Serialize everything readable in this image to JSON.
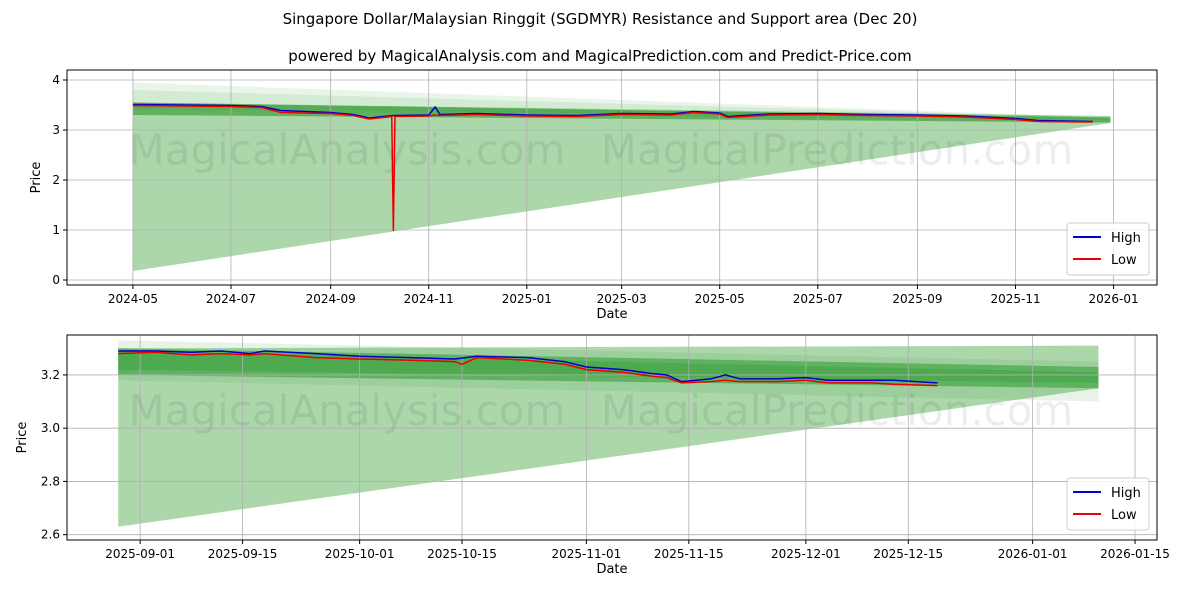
{
  "title": "Singapore Dollar/Malaysian Ringgit (SGDMYR) Resistance and Support area (Dec 20)",
  "subtitle": "powered by MagicalAnalysis.com and MagicalPrediction.com and Predict-Price.com",
  "watermark": [
    "MagicalAnalysis.com",
    "MagicalPrediction.com"
  ],
  "colors": {
    "high": "#0000cc",
    "low": "#ee0000",
    "band": "#2e9a2e"
  },
  "chart_data": [
    {
      "type": "line",
      "xlabel": "Date",
      "ylabel": "Price",
      "ylim": [
        -0.1,
        4.2
      ],
      "xlim": [
        "2024-03-21",
        "2026-01-28"
      ],
      "yticks": [
        0,
        1,
        2,
        3,
        4
      ],
      "xticks": [
        "2024-05",
        "2024-07",
        "2024-09",
        "2024-11",
        "2025-01",
        "2025-03",
        "2025-05",
        "2025-07",
        "2025-09",
        "2025-11",
        "2026-01"
      ],
      "legend": [
        "High",
        "Low"
      ],
      "legend_position": "lower-right",
      "bands": [
        {
          "x0": "2024-05-01",
          "x1": "2025-12-30",
          "lo0": 0.18,
          "hi0": 3.55,
          "lo1": 3.14,
          "hi1": 3.28,
          "opacity": 0.4
        },
        {
          "x0": "2024-05-01",
          "x1": "2025-12-30",
          "lo0": 3.3,
          "hi0": 3.55,
          "lo1": 3.15,
          "hi1": 3.25,
          "opacity": 0.6
        },
        {
          "x0": "2024-05-01",
          "x1": "2025-12-30",
          "lo0": 3.45,
          "hi0": 3.95,
          "lo1": 3.2,
          "hi1": 3.25,
          "opacity": 0.1
        },
        {
          "x0": "2024-05-01",
          "x1": "2025-12-30",
          "lo0": 3.4,
          "hi0": 3.8,
          "lo1": 3.15,
          "hi1": 3.25,
          "opacity": 0.12
        }
      ],
      "series": [
        {
          "name": "High",
          "x": [
            "2024-05-01",
            "2024-06-01",
            "2024-07-01",
            "2024-07-20",
            "2024-08-01",
            "2024-09-01",
            "2024-09-15",
            "2024-09-25",
            "2024-10-10",
            "2024-11-01",
            "2024-11-05",
            "2024-11-08",
            "2024-12-01",
            "2025-01-01",
            "2025-02-01",
            "2025-03-01",
            "2025-04-01",
            "2025-04-15",
            "2025-05-01",
            "2025-05-06",
            "2025-06-01",
            "2025-07-01",
            "2025-08-01",
            "2025-09-01",
            "2025-10-01",
            "2025-11-01",
            "2025-11-15",
            "2025-12-19"
          ],
          "y": [
            3.51,
            3.5,
            3.49,
            3.47,
            3.39,
            3.35,
            3.31,
            3.24,
            3.29,
            3.3,
            3.46,
            3.31,
            3.33,
            3.3,
            3.29,
            3.33,
            3.32,
            3.37,
            3.34,
            3.27,
            3.32,
            3.33,
            3.31,
            3.3,
            3.28,
            3.23,
            3.19,
            3.17
          ]
        },
        {
          "name": "Low",
          "x": [
            "2024-05-01",
            "2024-06-01",
            "2024-07-01",
            "2024-07-20",
            "2024-08-01",
            "2024-09-01",
            "2024-09-15",
            "2024-09-25",
            "2024-10-09",
            "2024-10-10",
            "2024-10-11",
            "2024-11-01",
            "2024-11-05",
            "2024-11-08",
            "2024-12-01",
            "2025-01-01",
            "2025-02-01",
            "2025-03-01",
            "2025-04-01",
            "2025-04-15",
            "2025-05-01",
            "2025-05-06",
            "2025-06-01",
            "2025-07-01",
            "2025-08-01",
            "2025-09-01",
            "2025-10-01",
            "2025-11-01",
            "2025-11-15",
            "2025-12-19"
          ],
          "y": [
            3.49,
            3.48,
            3.47,
            3.45,
            3.35,
            3.33,
            3.29,
            3.22,
            3.27,
            0.98,
            3.27,
            3.28,
            3.3,
            3.29,
            3.31,
            3.28,
            3.27,
            3.31,
            3.3,
            3.35,
            3.32,
            3.25,
            3.3,
            3.31,
            3.29,
            3.28,
            3.26,
            3.21,
            3.17,
            3.16
          ]
        }
      ]
    },
    {
      "type": "line",
      "xlabel": "Date",
      "ylabel": "Price",
      "ylim": [
        2.58,
        3.35
      ],
      "xlim": [
        "2025-08-22",
        "2026-01-18"
      ],
      "yticks": [
        2.6,
        2.8,
        3.0,
        3.2
      ],
      "xticks": [
        "2025-09-01",
        "2025-09-15",
        "2025-10-01",
        "2025-10-15",
        "2025-11-01",
        "2025-11-15",
        "2025-12-01",
        "2025-12-15",
        "2026-01-01",
        "2026-01-15"
      ],
      "legend": [
        "High",
        "Low"
      ],
      "legend_position": "lower-right",
      "bands": [
        {
          "x0": "2025-08-29",
          "x1": "2026-01-10",
          "lo0": 2.63,
          "hi0": 3.3,
          "lo1": 3.15,
          "hi1": 3.31,
          "opacity": 0.4
        },
        {
          "x0": "2025-08-29",
          "x1": "2026-01-10",
          "lo0": 3.2,
          "hi0": 3.3,
          "lo1": 3.15,
          "hi1": 3.23,
          "opacity": 0.55
        },
        {
          "x0": "2025-08-29",
          "x1": "2026-01-10",
          "lo0": 3.22,
          "hi0": 3.29,
          "lo1": 3.17,
          "hi1": 3.21,
          "opacity": 0.35
        },
        {
          "x0": "2025-08-29",
          "x1": "2026-01-10",
          "lo0": 3.18,
          "hi0": 3.33,
          "lo1": 3.1,
          "hi1": 3.25,
          "opacity": 0.12
        }
      ],
      "series": [
        {
          "name": "High",
          "x": [
            "2025-08-29",
            "2025-09-03",
            "2025-09-08",
            "2025-09-12",
            "2025-09-16",
            "2025-09-18",
            "2025-09-25",
            "2025-10-01",
            "2025-10-08",
            "2025-10-14",
            "2025-10-17",
            "2025-10-24",
            "2025-10-29",
            "2025-11-01",
            "2025-11-06",
            "2025-11-10",
            "2025-11-12",
            "2025-11-14",
            "2025-11-18",
            "2025-11-20",
            "2025-11-22",
            "2025-11-27",
            "2025-12-01",
            "2025-12-04",
            "2025-12-10",
            "2025-12-13",
            "2025-12-19"
          ],
          "y": [
            3.29,
            3.29,
            3.285,
            3.29,
            3.28,
            3.29,
            3.28,
            3.27,
            3.265,
            3.26,
            3.27,
            3.265,
            3.25,
            3.23,
            3.22,
            3.205,
            3.2,
            3.175,
            3.185,
            3.2,
            3.185,
            3.185,
            3.19,
            3.18,
            3.18,
            3.18,
            3.17
          ]
        },
        {
          "name": "Low",
          "x": [
            "2025-08-29",
            "2025-09-03",
            "2025-09-08",
            "2025-09-12",
            "2025-09-16",
            "2025-09-18",
            "2025-09-25",
            "2025-10-01",
            "2025-10-08",
            "2025-10-14",
            "2025-10-15",
            "2025-10-17",
            "2025-10-24",
            "2025-10-29",
            "2025-11-01",
            "2025-11-06",
            "2025-11-10",
            "2025-11-12",
            "2025-11-14",
            "2025-11-18",
            "2025-11-20",
            "2025-11-22",
            "2025-11-27",
            "2025-12-01",
            "2025-12-04",
            "2025-12-10",
            "2025-12-13",
            "2025-12-19"
          ],
          "y": [
            3.28,
            3.285,
            3.275,
            3.28,
            3.275,
            3.28,
            3.265,
            3.26,
            3.255,
            3.25,
            3.24,
            3.265,
            3.255,
            3.24,
            3.22,
            3.21,
            3.195,
            3.19,
            3.17,
            3.175,
            3.18,
            3.175,
            3.175,
            3.18,
            3.17,
            3.17,
            3.165,
            3.16
          ]
        }
      ]
    }
  ]
}
